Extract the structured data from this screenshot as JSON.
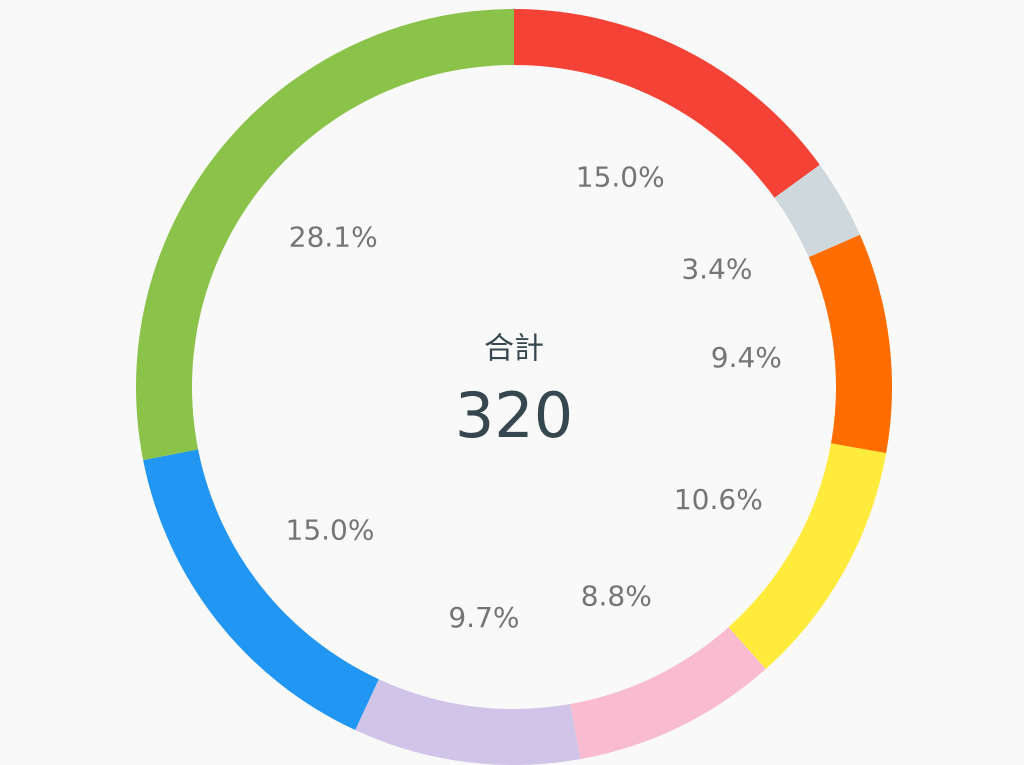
{
  "chart_data": {
    "type": "donut",
    "center_label": "合計",
    "total": 320,
    "values": [
      15.0,
      3.4,
      9.4,
      10.6,
      8.8,
      9.7,
      15.0,
      28.1
    ],
    "value_labels": [
      "15.0%",
      "3.4%",
      "9.4%",
      "10.6%",
      "8.8%",
      "9.7%",
      "15.0%",
      "28.1%"
    ],
    "colors": [
      "#f44336",
      "#cfd8dc",
      "#ff6d00",
      "#ffeb3b",
      "#f8bbd0",
      "#d1c4e9",
      "#2196f3",
      "#8bc34a"
    ]
  }
}
